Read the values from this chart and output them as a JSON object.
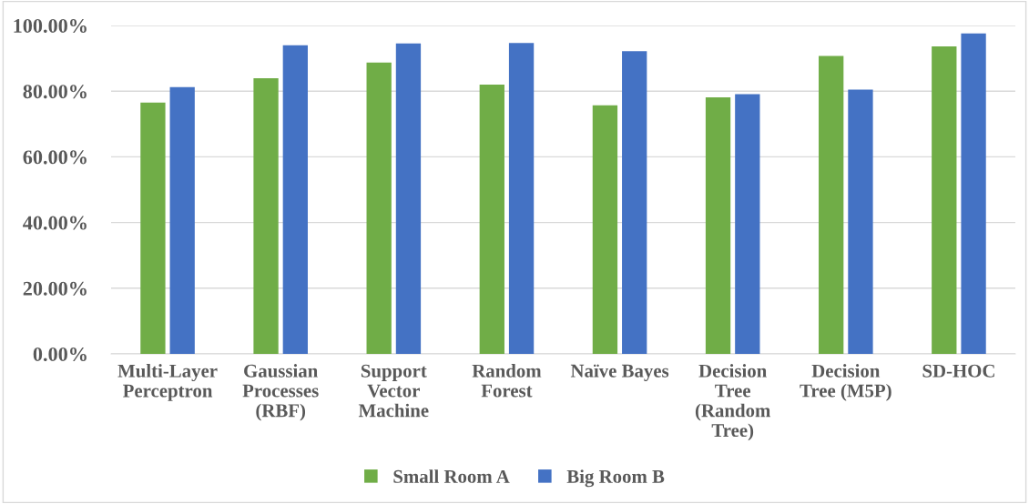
{
  "chart_data": {
    "type": "bar",
    "categories": [
      "Multi-Layer Perceptron",
      "Gaussian Processes (RBF)",
      "Support Vector Machine",
      "Random Forest",
      "Naïve Bayes",
      "Decision Tree (Random Tree)",
      "Decision Tree (M5P)",
      "SD-HOC"
    ],
    "series": [
      {
        "name": "Small Room A",
        "color": "#70ad47",
        "values": [
          76.5,
          83.9,
          88.7,
          82.0,
          75.7,
          78.1,
          90.7,
          93.6
        ]
      },
      {
        "name": "Big Room B",
        "color": "#4472c4",
        "values": [
          81.2,
          94.0,
          94.5,
          94.7,
          92.2,
          79.1,
          80.5,
          97.6
        ]
      }
    ],
    "ylim": [
      0,
      100
    ],
    "yticks": [
      {
        "value": 0,
        "label": "0.00%"
      },
      {
        "value": 20,
        "label": "20.00%"
      },
      {
        "value": 40,
        "label": "40.00%"
      },
      {
        "value": 60,
        "label": "60.00%"
      },
      {
        "value": 80,
        "label": "80.00%"
      },
      {
        "value": 100,
        "label": "100.00%"
      }
    ],
    "grid": "y",
    "legend": "bottom"
  }
}
